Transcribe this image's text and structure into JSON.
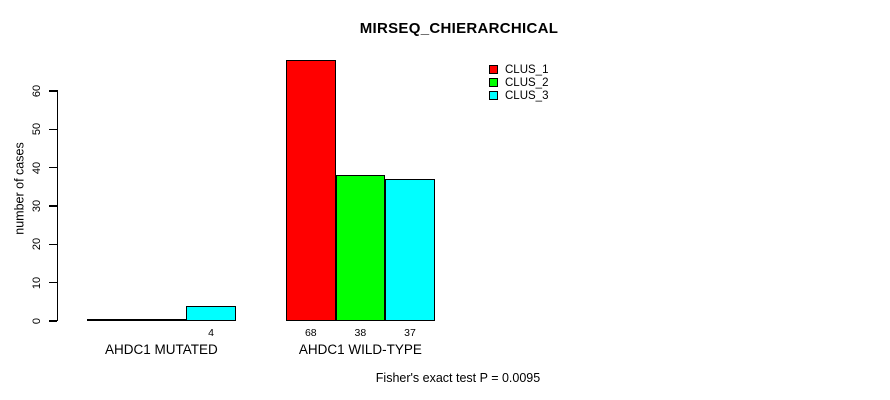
{
  "title": "MIRSEQ_CHIERARCHICAL",
  "annotation": "Fisher's exact test P = 0.0095",
  "chart_data": {
    "type": "bar",
    "title": "MIRSEQ_CHIERARCHICAL",
    "xlabel": "",
    "ylabel": "number of cases",
    "categories": [
      "AHDC1 MUTATED",
      "AHDC1 WILD-TYPE"
    ],
    "series": [
      {
        "name": "CLUS_1",
        "color": "#ff0000",
        "values": [
          0,
          68
        ]
      },
      {
        "name": "CLUS_2",
        "color": "#00ff00",
        "values": [
          0,
          38
        ]
      },
      {
        "name": "CLUS_3",
        "color": "#00ffff",
        "values": [
          4,
          37
        ]
      }
    ],
    "bar_value_labels": [
      [
        "",
        "",
        "4"
      ],
      [
        "68",
        "38",
        "37"
      ]
    ],
    "yticks": [
      0,
      10,
      20,
      30,
      40,
      50,
      60
    ],
    "ylim": [
      0,
      60
    ],
    "grid": false,
    "legend_position": "top-right",
    "annotation": "Fisher's exact test P = 0.0095"
  }
}
